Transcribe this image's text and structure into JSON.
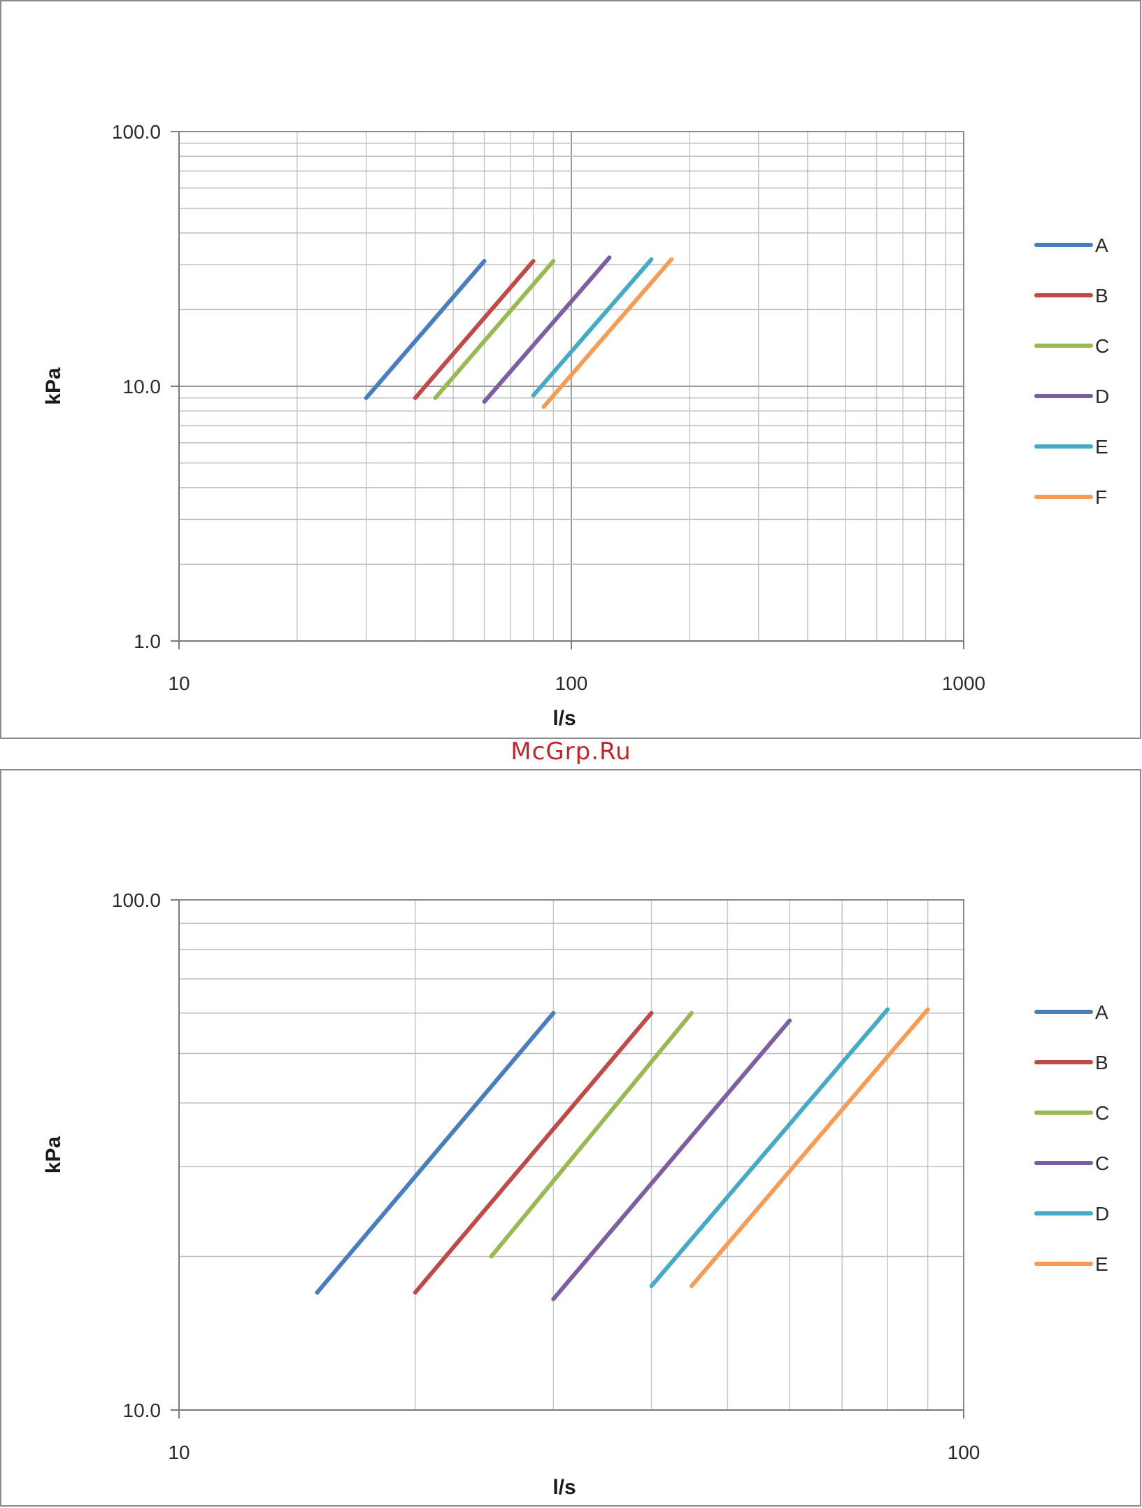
{
  "watermark": "McGrp.Ru",
  "chart_data": [
    {
      "type": "line",
      "xlabel": "l/s",
      "ylabel": "kPa",
      "xscale": "log",
      "yscale": "log",
      "xlim": [
        10,
        1000
      ],
      "ylim": [
        1,
        100
      ],
      "x_tick_labels": [
        "10",
        "100",
        "1000"
      ],
      "y_tick_labels": [
        "100.0",
        "10.0",
        "1.0"
      ],
      "grid": true,
      "legend": "right",
      "series": [
        {
          "name": "A",
          "color": "#4a7ebb",
          "x": [
            30,
            60
          ],
          "y": [
            9.0,
            31.0
          ]
        },
        {
          "name": "B",
          "color": "#be4b48",
          "x": [
            40,
            80
          ],
          "y": [
            9.0,
            31.0
          ]
        },
        {
          "name": "C",
          "color": "#98b954",
          "x": [
            45,
            90
          ],
          "y": [
            9.0,
            31.0
          ]
        },
        {
          "name": "D",
          "color": "#7d5fa0",
          "x": [
            60,
            125
          ],
          "y": [
            8.7,
            32.0
          ]
        },
        {
          "name": "E",
          "color": "#46aac5",
          "x": [
            80,
            160
          ],
          "y": [
            9.2,
            31.5
          ]
        },
        {
          "name": "F",
          "color": "#f59d56",
          "x": [
            85,
            180
          ],
          "y": [
            8.3,
            31.5
          ]
        }
      ]
    },
    {
      "type": "line",
      "xlabel": "l/s",
      "ylabel": "kPa",
      "xscale": "log",
      "yscale": "log",
      "xlim": [
        10,
        100
      ],
      "ylim": [
        10,
        100
      ],
      "x_tick_labels": [
        "10",
        "100"
      ],
      "y_tick_labels": [
        "100.0",
        "10.0"
      ],
      "grid": true,
      "legend": "right",
      "series": [
        {
          "name": "A",
          "color": "#4a7ebb",
          "x": [
            15,
            30
          ],
          "y": [
            17,
            60
          ]
        },
        {
          "name": "B",
          "color": "#be4b48",
          "x": [
            20,
            40
          ],
          "y": [
            17,
            60
          ]
        },
        {
          "name": "C",
          "color": "#98b954",
          "x": [
            25,
            45
          ],
          "y": [
            20,
            60
          ]
        },
        {
          "name": "C",
          "color": "#7d5fa0",
          "x": [
            30,
            60
          ],
          "y": [
            16.5,
            58
          ]
        },
        {
          "name": "D",
          "color": "#46aac5",
          "x": [
            40,
            80
          ],
          "y": [
            17.5,
            61
          ]
        },
        {
          "name": "E",
          "color": "#f59d56",
          "x": [
            45,
            90
          ],
          "y": [
            17.5,
            61
          ]
        }
      ]
    }
  ]
}
